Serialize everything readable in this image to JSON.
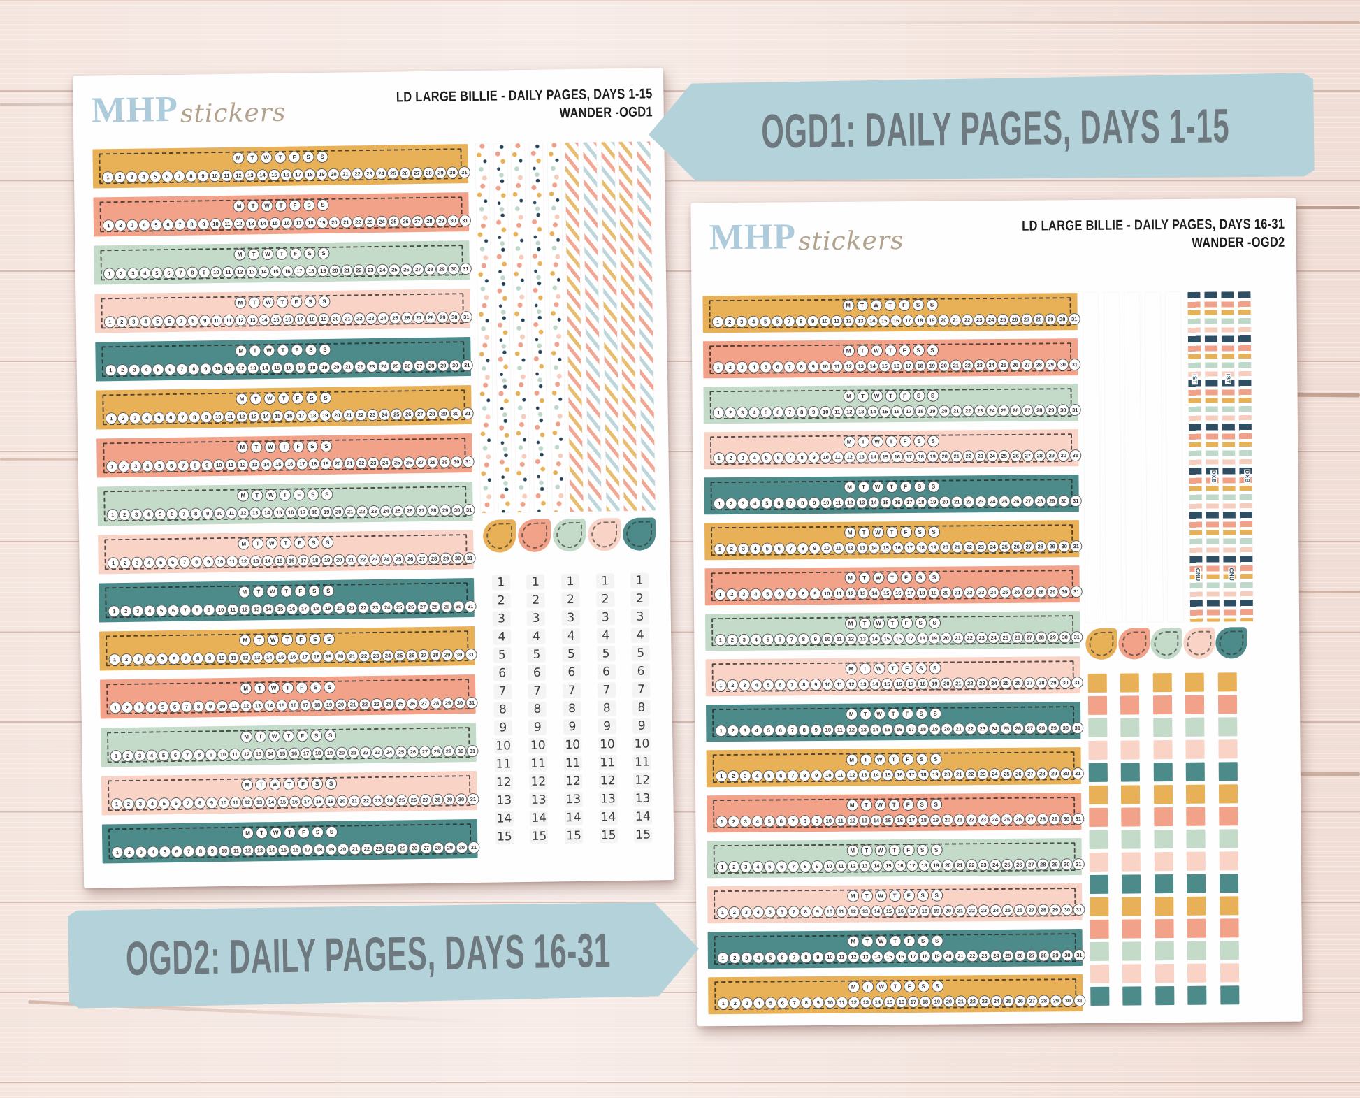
{
  "week_header": [
    "M",
    "T",
    "W",
    "T",
    "F",
    "S",
    "S"
  ],
  "day_numbers_31": [
    1,
    2,
    3,
    4,
    5,
    6,
    7,
    8,
    9,
    10,
    11,
    12,
    13,
    14,
    15,
    16,
    17,
    18,
    19,
    20,
    21,
    22,
    23,
    24,
    25,
    26,
    27,
    28,
    29,
    30,
    31
  ],
  "callouts": {
    "ogd1": {
      "text": "OGD1: DAILY PAGES, DAYS 1-15"
    },
    "ogd2": {
      "text": "OGD2: DAILY PAGES, DAYS 16-31"
    }
  },
  "sheets": {
    "left": {
      "brand_mhp": "MHP",
      "brand_stickers": "stickers",
      "title_line1": "LD LARGE BILLIE  - DAILY PAGES, DAYS 1-15",
      "title_line2": "WANDER -OGD1",
      "strip_colors": [
        "mustard",
        "salmon",
        "mint",
        "blush",
        "teal",
        "mustard",
        "salmon",
        "mint",
        "blush",
        "teal",
        "mustard",
        "salmon",
        "mint",
        "blush",
        "teal"
      ],
      "washi": [
        "floral",
        "floral-b",
        "floral",
        "floral-b",
        "floral",
        "cstripe-a",
        "cstripe-b",
        "cstripe-c",
        "cstripe-a",
        "cstripe-b"
      ],
      "drops": [
        "mustard",
        "salmon",
        "mint",
        "blush",
        "teal"
      ],
      "day_column_count": 5,
      "day_column_numbers": [
        1,
        2,
        3,
        4,
        5,
        6,
        7,
        8,
        9,
        10,
        11,
        12,
        13,
        14,
        15
      ]
    },
    "right": {
      "brand_mhp": "MHP",
      "brand_stickers": "stickers",
      "title_line1": "LD LARGE BILLIE - DAILY PAGES, DAYS 16-31",
      "title_line2": "WANDER -OGD2",
      "strip_colors": [
        "mustard",
        "salmon",
        "mint",
        "blush",
        "teal",
        "mustard",
        "salmon",
        "mint",
        "blush",
        "teal",
        "mustard",
        "salmon",
        "mint",
        "blush",
        "teal",
        "mustard"
      ],
      "washi_stripes": [
        "pinkstripe",
        "pinkstripe",
        "pinkstripe",
        "pinkstripe",
        "pinkstripe"
      ],
      "washi_travel": [
        "travel",
        "travel",
        "travel",
        "travel"
      ],
      "travel_codes": [
        "IST",
        "DXB",
        "CNU"
      ],
      "drops": [
        "mustard",
        "salmon",
        "mint",
        "blush",
        "teal"
      ],
      "square_columns": 5,
      "square_rows": [
        "mustard",
        "salmon",
        "mint",
        "blush",
        "teal",
        "mustard",
        "salmon",
        "mint",
        "blush",
        "teal",
        "mustard",
        "salmon",
        "mint",
        "blush",
        "teal"
      ]
    }
  },
  "colors": {
    "mustard": "#E8B157",
    "salmon": "#F2A289",
    "mint": "#C4DBCA",
    "blush": "#F8D3C6",
    "teal": "#4C8B89",
    "sheet_white": "#FEFEFE",
    "logo_blue": "#AECBDB",
    "logo_tan": "#B3A28C",
    "callout_bg": "#B4D2D9",
    "callout_text": "#6E797F",
    "title_ink": "#1C1C1C"
  }
}
